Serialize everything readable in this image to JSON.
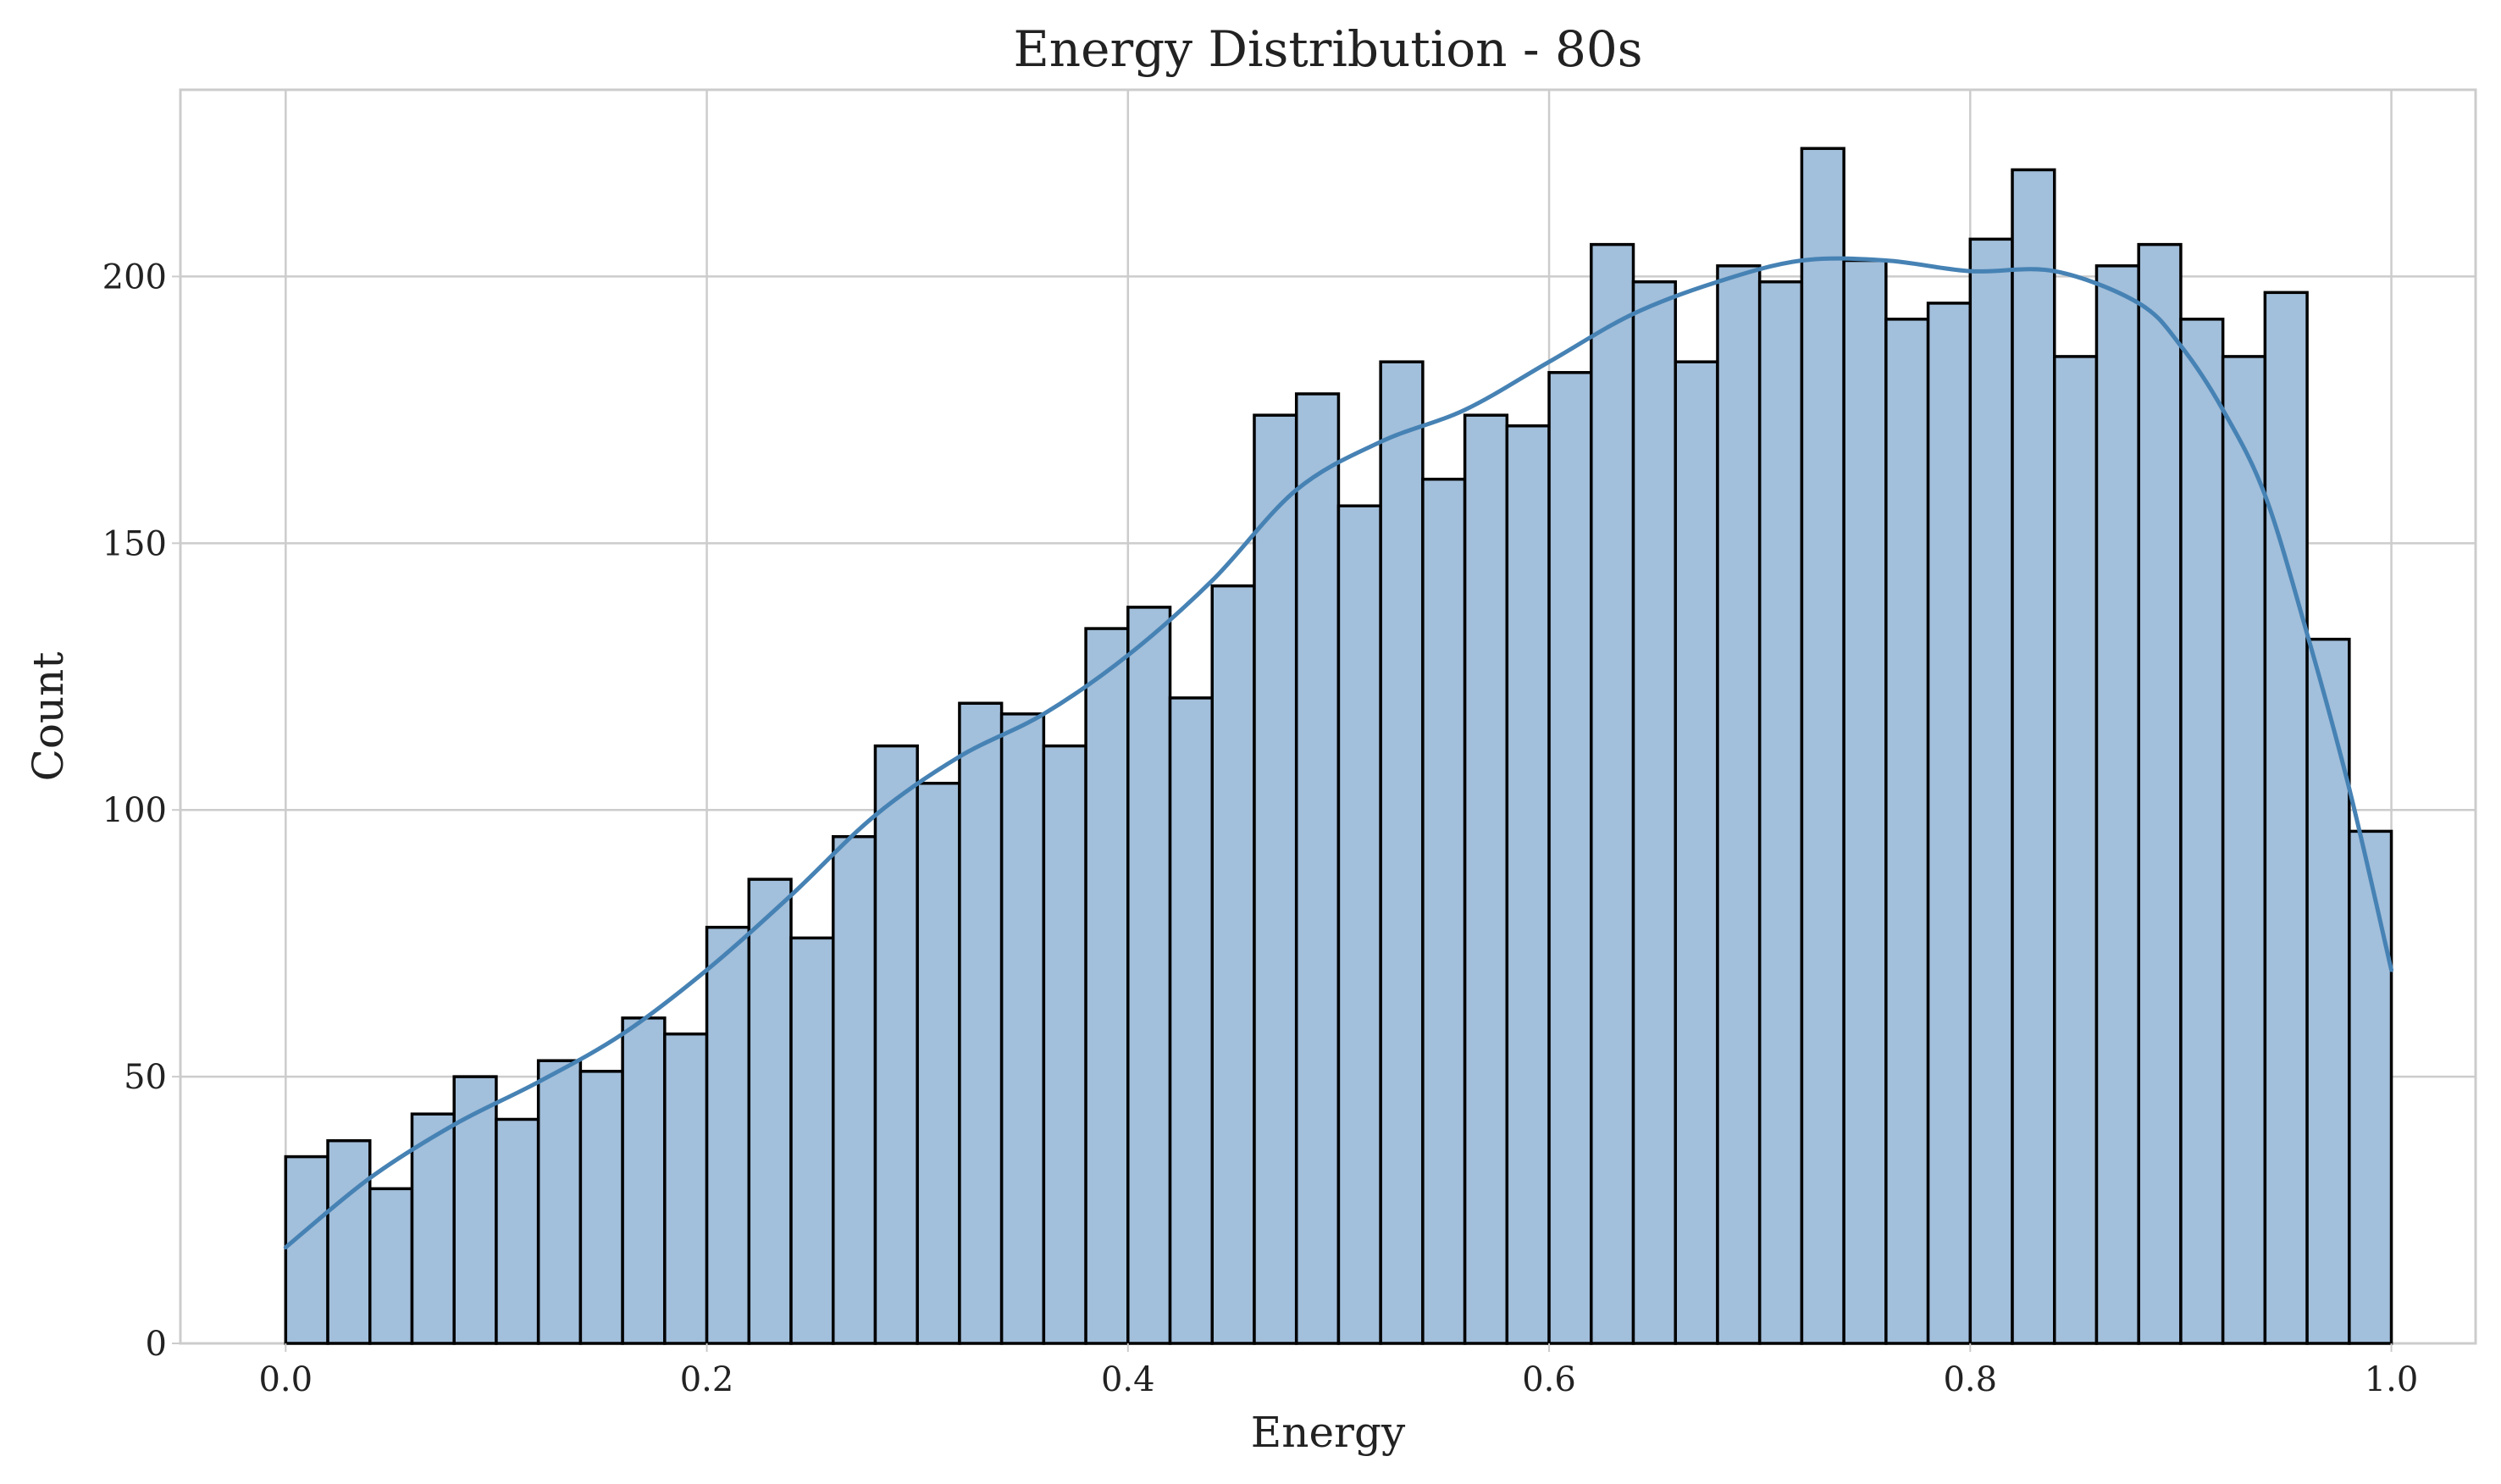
{
  "chart_data": {
    "type": "bar",
    "subtype": "histogram-with-kde",
    "title": "Energy Distribution - 80s",
    "xlabel": "Energy",
    "ylabel": "Count",
    "xlim": [
      -0.05,
      1.04
    ],
    "ylim": [
      0,
      235
    ],
    "grid": true,
    "x_ticks": [
      0.0,
      0.2,
      0.4,
      0.6,
      0.8,
      1.0
    ],
    "x_tick_labels": [
      "0.0",
      "0.2",
      "0.4",
      "0.6",
      "0.8",
      "1.0"
    ],
    "y_ticks": [
      0,
      50,
      100,
      150,
      200
    ],
    "y_tick_labels": [
      "0",
      "50",
      "100",
      "150",
      "200"
    ],
    "bins": {
      "start": 0.0,
      "end": 1.0,
      "count": 50
    },
    "values": [
      35,
      38,
      29,
      43,
      50,
      42,
      53,
      51,
      61,
      58,
      78,
      87,
      76,
      95,
      112,
      105,
      120,
      118,
      112,
      134,
      138,
      121,
      142,
      174,
      178,
      157,
      184,
      162,
      174,
      172,
      182,
      206,
      199,
      184,
      202,
      199,
      224,
      203,
      192,
      195,
      207,
      220,
      185,
      202,
      206,
      192,
      185,
      197,
      132,
      96
    ],
    "kde": {
      "x": [
        0.0,
        0.04,
        0.08,
        0.12,
        0.16,
        0.2,
        0.24,
        0.28,
        0.32,
        0.36,
        0.4,
        0.44,
        0.48,
        0.52,
        0.56,
        0.6,
        0.64,
        0.68,
        0.72,
        0.76,
        0.8,
        0.84,
        0.88,
        0.9,
        0.92,
        0.94,
        0.96,
        0.98,
        1.0
      ],
      "y": [
        18,
        31,
        41,
        49,
        58,
        70,
        84,
        99,
        110,
        118,
        129,
        143,
        160,
        169,
        175,
        184,
        193,
        199,
        203,
        203,
        201,
        201,
        195,
        187,
        175,
        159,
        133,
        104,
        70
      ]
    },
    "colors": {
      "bar_fill": "#a2bfdb",
      "bar_edge": "#000000",
      "kde_line": "#4682b4"
    }
  }
}
